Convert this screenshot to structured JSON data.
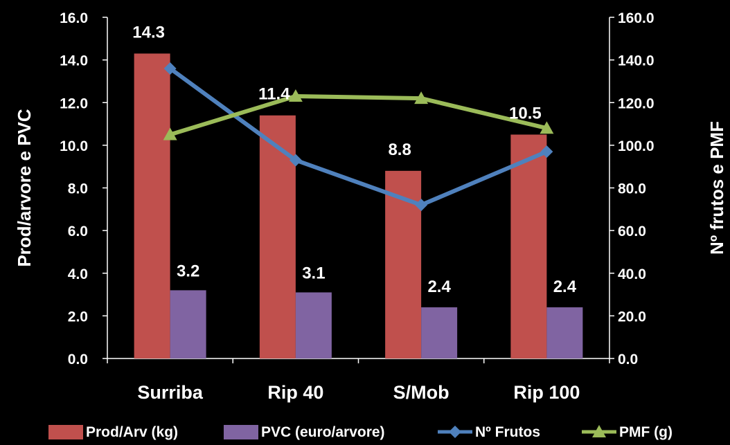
{
  "chart_data": {
    "type": "bar",
    "categories": [
      "Surriba",
      "Rip 40",
      "S/Mob",
      "Rip 100"
    ],
    "ylabel_left": "Prod/arvore e PVC",
    "ylabel_right": "Nº frutos e PMF",
    "ylim_left": [
      0,
      16
    ],
    "ylim_right": [
      0,
      160
    ],
    "yticks_left": [
      "0.0",
      "2.0",
      "4.0",
      "6.0",
      "8.0",
      "10.0",
      "12.0",
      "14.0",
      "16.0"
    ],
    "yticks_right": [
      "0.0",
      "20.0",
      "40.0",
      "60.0",
      "80.0",
      "100.0",
      "120.0",
      "140.0",
      "160.0"
    ],
    "grid": false,
    "legend_position": "bottom",
    "series": [
      {
        "name": "Prod/Arv (kg)",
        "kind": "bar",
        "axis": "left",
        "color": "#C0504D",
        "values": [
          14.3,
          11.4,
          8.8,
          10.5
        ],
        "labels": [
          "14.3",
          "11.4",
          "8.8",
          "10.5"
        ]
      },
      {
        "name": "PVC (euro/arvore)",
        "kind": "bar",
        "axis": "left",
        "color": "#8064A2",
        "values": [
          3.2,
          3.1,
          2.4,
          2.4
        ],
        "labels": [
          "3.2",
          "3.1",
          "2.4",
          "2.4"
        ]
      },
      {
        "name": "Nº Frutos",
        "kind": "line",
        "axis": "right",
        "color": "#4F81BD",
        "marker": "diamond",
        "values": [
          136,
          93,
          72,
          97
        ]
      },
      {
        "name": "PMF (g)",
        "kind": "line",
        "axis": "right",
        "color": "#9BBB59",
        "marker": "triangle",
        "values": [
          105,
          123,
          122,
          108
        ]
      }
    ]
  }
}
